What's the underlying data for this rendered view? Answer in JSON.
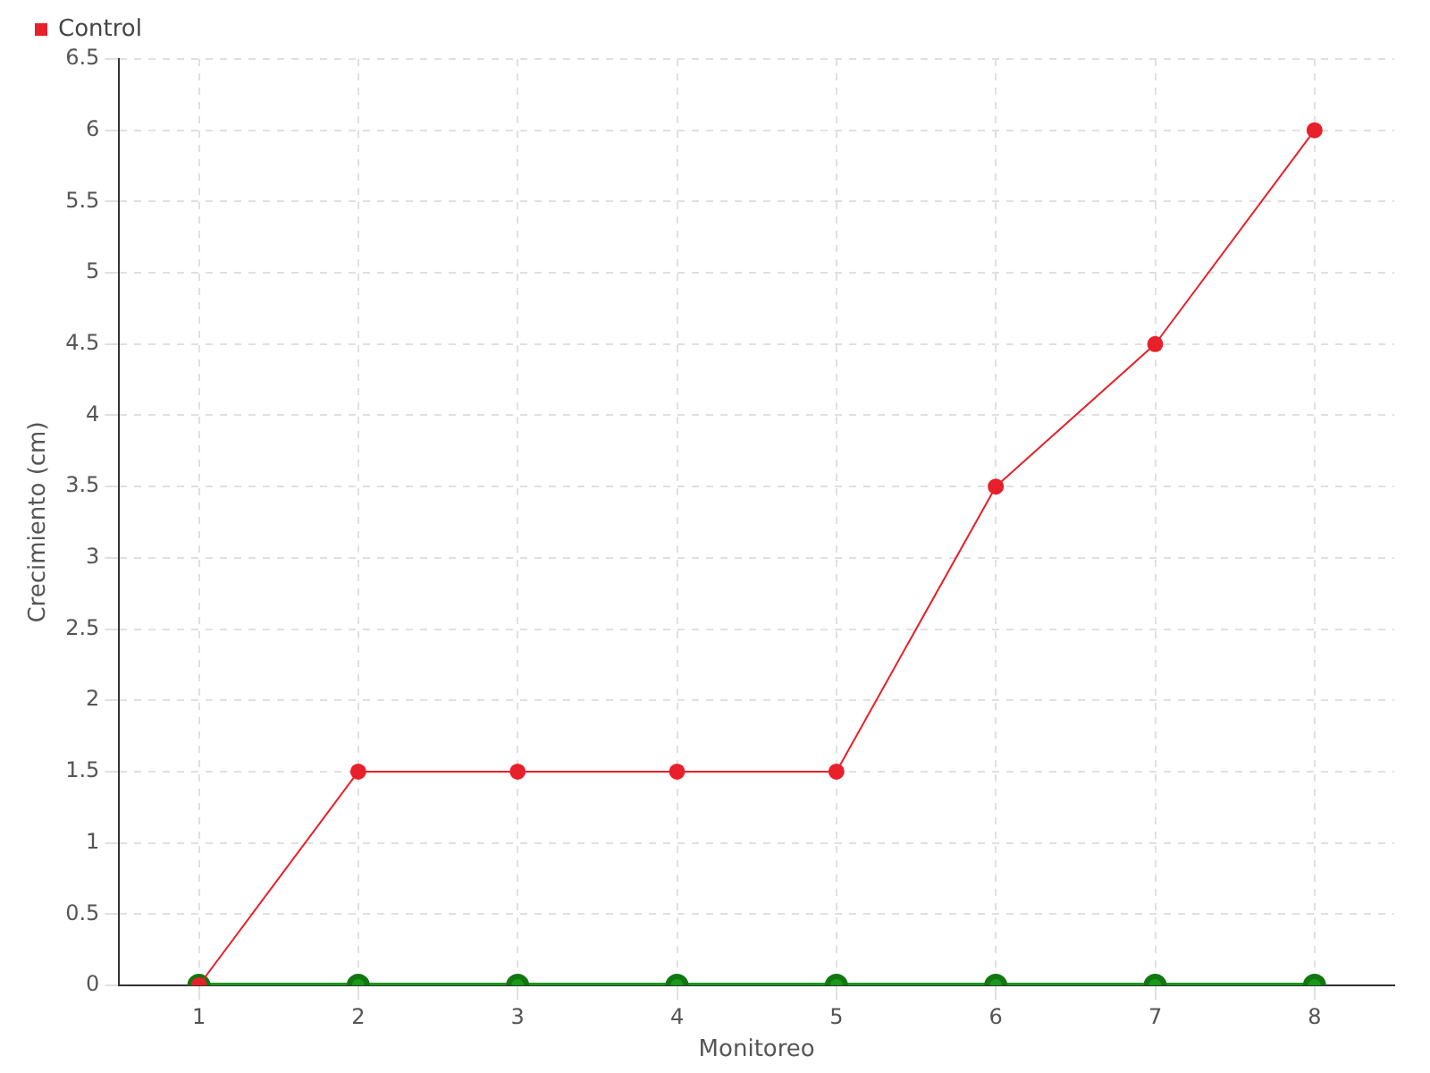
{
  "chart_data": {
    "type": "line",
    "xlabel": "Monitoreo",
    "ylabel": "Crecimiento (cm)",
    "categories": [
      "1",
      "2",
      "3",
      "4",
      "5",
      "6",
      "7",
      "8"
    ],
    "series": [
      {
        "color": "#1a9a1a",
        "values": [
          0,
          0,
          0,
          0,
          0,
          0,
          0,
          0
        ]
      },
      {
        "name": "Control",
        "color": "#e8202a",
        "values": [
          0,
          1.5,
          1.5,
          1.5,
          1.5,
          3.5,
          4.5,
          6
        ]
      }
    ],
    "ylim": [
      0,
      6.5
    ],
    "yticks": [
      0,
      0.5,
      1,
      1.5,
      2,
      2.5,
      3,
      3.5,
      4,
      4.5,
      5,
      5.5,
      6,
      6.5
    ],
    "grid": true,
    "legend": "top left",
    "marker": "circle"
  }
}
